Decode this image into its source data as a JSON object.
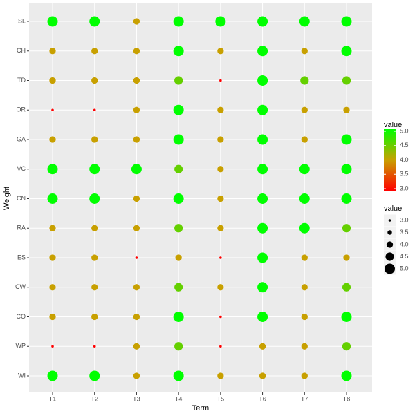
{
  "chart_data": {
    "type": "dot-grid",
    "x_label": "Term",
    "y_label": "Weight",
    "x_categories": [
      "T1",
      "T2",
      "T3",
      "T4",
      "T5",
      "T6",
      "T7",
      "T8"
    ],
    "y_categories": [
      "SL",
      "CH",
      "TD",
      "OR",
      "GA",
      "VC",
      "CN",
      "RA",
      "ES",
      "CW",
      "CO",
      "WP",
      "WI"
    ],
    "values": [
      [
        5,
        5,
        4,
        5,
        5,
        5,
        5,
        5
      ],
      [
        4,
        4,
        4,
        5,
        4,
        5,
        4,
        5
      ],
      [
        4,
        4,
        4,
        4.5,
        3,
        5,
        4.5,
        4.5
      ],
      [
        3,
        3,
        4,
        5,
        4,
        5,
        4,
        4
      ],
      [
        4,
        4,
        4,
        5,
        4,
        5,
        4,
        5
      ],
      [
        5,
        5,
        5,
        4.5,
        4,
        5,
        5,
        5
      ],
      [
        5,
        5,
        4,
        5,
        4,
        5,
        5,
        5
      ],
      [
        4,
        4,
        4,
        4.5,
        4,
        5,
        5,
        4.5
      ],
      [
        4,
        4,
        3,
        4,
        3,
        5,
        4,
        4
      ],
      [
        4,
        4,
        4,
        4.5,
        4,
        5,
        4,
        4.5
      ],
      [
        4,
        4,
        4,
        5,
        3,
        5,
        4,
        5
      ],
      [
        3,
        3,
        4,
        4.5,
        3,
        4,
        4,
        4.5
      ],
      [
        5,
        5,
        4,
        5,
        4,
        4,
        4,
        5
      ]
    ],
    "color_legend": {
      "title": "value",
      "lim": [
        3,
        5
      ],
      "colors": [
        "#ff0000",
        "#c8a000",
        "#00ff00"
      ],
      "ticks": [
        {
          "value": 3,
          "label": "3.0"
        },
        {
          "value": 3.5,
          "label": "3.5"
        },
        {
          "value": 4,
          "label": "4.0"
        },
        {
          "value": 4.5,
          "label": "4.5"
        },
        {
          "value": 5,
          "label": "5.0"
        }
      ]
    },
    "size_legend": {
      "title": "value",
      "ticks": [
        {
          "value": 3,
          "label": "3.0"
        },
        {
          "value": 3.5,
          "label": "3.5"
        },
        {
          "value": 4,
          "label": "4.0"
        },
        {
          "value": 4.5,
          "label": "4.5"
        },
        {
          "value": 5,
          "label": "5.0"
        }
      ]
    },
    "grid": true
  }
}
